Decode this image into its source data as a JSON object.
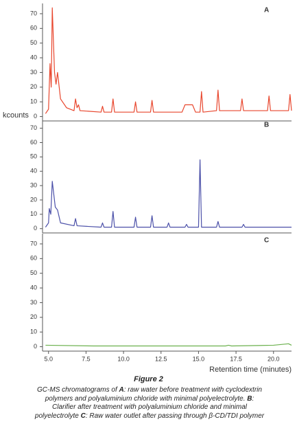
{
  "chart_data": [
    {
      "type": "line",
      "label": "A",
      "y_label": "kcounts",
      "x": [
        4.8,
        5.0,
        5.1,
        5.18,
        5.25,
        5.4,
        5.5,
        5.6,
        5.8,
        6.2,
        6.7,
        6.8,
        6.9,
        7.0,
        7.1,
        8.5,
        8.6,
        8.7,
        9.2,
        9.3,
        9.4,
        10.7,
        10.8,
        10.9,
        11.8,
        11.9,
        12.0,
        13.9,
        14.1,
        14.6,
        14.8,
        15.1,
        15.2,
        15.3,
        16.2,
        16.3,
        16.4,
        17.8,
        17.9,
        18.0,
        19.6,
        19.7,
        19.8,
        21.0,
        21.1,
        21.2
      ],
      "series": [
        {
          "color": "#e8452c",
          "values": [
            2,
            5,
            36,
            20,
            74,
            30,
            22,
            30,
            12,
            6,
            4,
            12,
            6,
            8,
            4,
            3,
            7,
            3,
            3,
            12,
            3,
            3,
            10,
            3,
            3,
            11,
            3,
            3,
            8,
            8,
            3,
            3,
            17,
            3,
            4,
            18,
            4,
            4,
            12,
            4,
            4,
            14,
            4,
            4,
            15,
            4
          ]
        }
      ],
      "xlim": [
        4.6,
        21.2
      ],
      "ylim": [
        -3,
        77
      ],
      "yticks": [
        0,
        10,
        20,
        30,
        40,
        50,
        60,
        70
      ]
    },
    {
      "type": "line",
      "label": "B",
      "x": [
        4.8,
        5.0,
        5.05,
        5.15,
        5.25,
        5.45,
        5.6,
        5.8,
        6.7,
        6.8,
        6.9,
        8.5,
        8.6,
        8.7,
        9.2,
        9.3,
        9.4,
        10.7,
        10.8,
        10.9,
        11.8,
        11.9,
        12.0,
        12.9,
        13.0,
        13.1,
        14.1,
        14.2,
        14.3,
        15.0,
        15.1,
        15.2,
        16.2,
        16.3,
        16.4,
        17.9,
        18.0,
        18.1,
        21.2
      ],
      "series": [
        {
          "color": "#4a4fa8",
          "values": [
            1,
            4,
            14,
            10,
            33,
            15,
            13,
            4,
            2,
            7,
            2,
            1,
            4,
            1,
            1,
            12,
            1,
            1,
            8,
            1,
            1,
            9,
            1,
            1,
            4,
            1,
            1,
            3,
            1,
            1,
            48,
            1,
            1,
            5,
            1,
            1,
            3,
            1,
            1
          ]
        }
      ],
      "xlim": [
        4.6,
        21.2
      ],
      "ylim": [
        -3,
        77
      ],
      "yticks": [
        0,
        10,
        20,
        30,
        40,
        50,
        60,
        70
      ]
    },
    {
      "type": "line",
      "label": "C",
      "x_label": "Retention time (minutes)",
      "x": [
        4.8,
        8,
        12,
        16,
        16.8,
        17,
        17.2,
        20,
        21,
        21.2
      ],
      "series": [
        {
          "color": "#6ab04c",
          "values": [
            1,
            0.5,
            0.5,
            0.5,
            0.5,
            1,
            0.5,
            1,
            2,
            1
          ]
        }
      ],
      "xlim": [
        4.6,
        21.2
      ],
      "ylim": [
        -3,
        77
      ],
      "yticks": [
        0,
        10,
        20,
        30,
        40,
        50,
        60,
        70
      ],
      "xticks": [
        {
          "value": 5,
          "label": "5.0"
        },
        {
          "value": 7.5,
          "label": "7.5"
        },
        {
          "value": 10,
          "label": "10.0"
        },
        {
          "value": 12.5,
          "label": "12.5"
        },
        {
          "value": 15,
          "label": "15.0"
        },
        {
          "value": 17.5,
          "label": "17.5"
        },
        {
          "value": 20,
          "label": "20.0"
        }
      ]
    }
  ],
  "figure_label": "Figure 2",
  "caption": [
    "GC-MS chromatograms of ",
    "A",
    ": raw water before treatment with cyclodextrin polymers and polyaluminium chloride with minimal polyelectrolyte. ",
    "B",
    ": Clarifier after treatment with polyaluminium chloride and minimal polyelectrolyte ",
    "C",
    ": Raw water outlet after passing through β-CD/TDI polymer"
  ]
}
